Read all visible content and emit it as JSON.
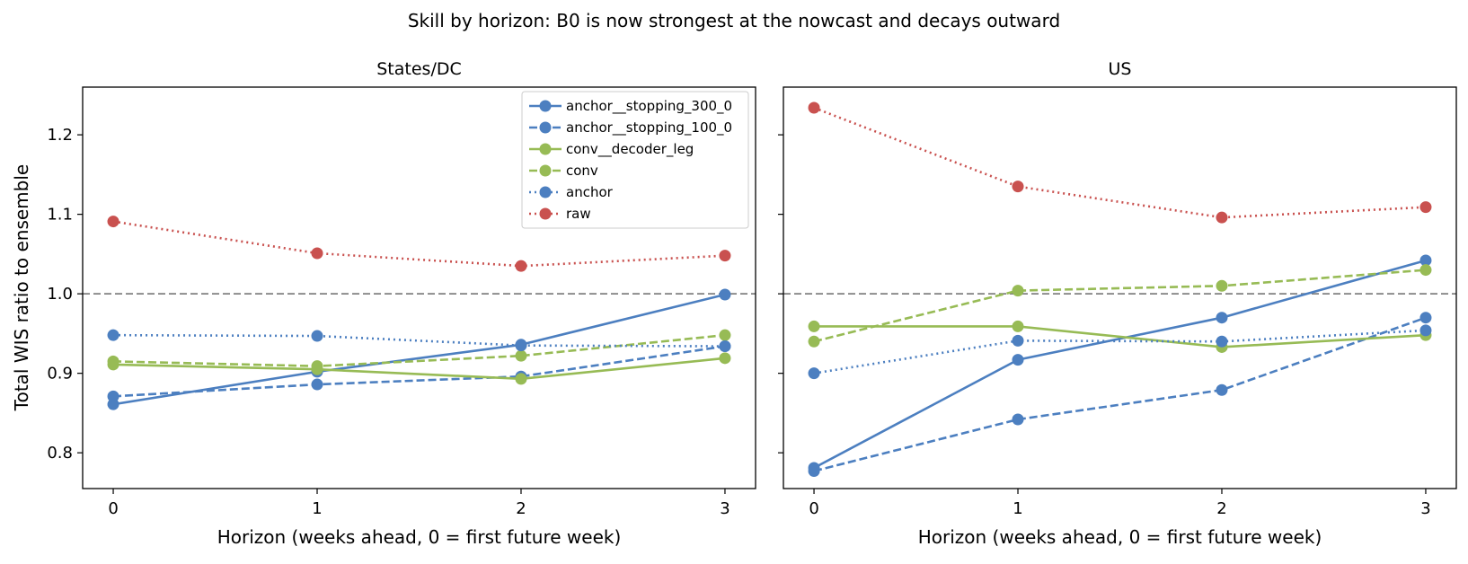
{
  "chart_data": {
    "type": "line",
    "suptitle": "Skill by horizon: B0 is now strongest at the nowcast and decays outward",
    "ylabel": "Total WIS ratio to ensemble",
    "xlabel": "Horizon (weeks ahead, 0 = first future week)",
    "x": [
      0,
      1,
      2,
      3
    ],
    "xticks": [
      "0",
      "1",
      "2",
      "3"
    ],
    "yticks": [
      "0.8",
      "0.9",
      "1.0",
      "1.1",
      "1.2"
    ],
    "ylim": [
      0.755,
      1.26
    ],
    "xlim": [
      -0.15,
      3.15
    ],
    "reference_line": {
      "y": 1.0,
      "style": "dashed",
      "color": "#808080"
    },
    "legend_position": "upper right of first panel",
    "series_styles": [
      {
        "name": "anchor__stopping_300_0",
        "color": "#4c7fc0",
        "dash": "solid"
      },
      {
        "name": "anchor__stopping_100_0",
        "color": "#4c7fc0",
        "dash": "dashed"
      },
      {
        "name": "conv__decoder_leg",
        "color": "#97bb55",
        "dash": "solid"
      },
      {
        "name": "conv",
        "color": "#97bb55",
        "dash": "dashed"
      },
      {
        "name": "anchor",
        "color": "#4c7fc0",
        "dash": "dotted"
      },
      {
        "name": "raw",
        "color": "#c9514f",
        "dash": "dotted"
      }
    ],
    "panels": [
      {
        "title": "States/DC",
        "series": [
          {
            "name": "anchor__stopping_300_0",
            "values": [
              0.861,
              0.902,
              0.936,
              0.999
            ]
          },
          {
            "name": "anchor__stopping_100_0",
            "values": [
              0.871,
              0.886,
              0.896,
              0.934
            ]
          },
          {
            "name": "conv__decoder_leg",
            "values": [
              0.911,
              0.905,
              0.893,
              0.919
            ]
          },
          {
            "name": "conv",
            "values": [
              0.915,
              0.909,
              0.922,
              0.948
            ]
          },
          {
            "name": "anchor",
            "values": [
              0.948,
              0.947,
              0.935,
              0.934
            ]
          },
          {
            "name": "raw",
            "values": [
              1.091,
              1.051,
              1.035,
              1.048
            ]
          }
        ]
      },
      {
        "title": "US",
        "series": [
          {
            "name": "anchor__stopping_300_0",
            "values": [
              0.781,
              0.917,
              0.97,
              1.042
            ]
          },
          {
            "name": "anchor__stopping_100_0",
            "values": [
              0.777,
              0.842,
              0.879,
              0.97
            ]
          },
          {
            "name": "conv__decoder_leg",
            "values": [
              0.959,
              0.959,
              0.933,
              0.948
            ]
          },
          {
            "name": "conv",
            "values": [
              0.94,
              1.004,
              1.01,
              1.03
            ]
          },
          {
            "name": "anchor",
            "values": [
              0.9,
              0.941,
              0.94,
              0.954
            ]
          },
          {
            "name": "raw",
            "values": [
              1.234,
              1.135,
              1.096,
              1.109
            ]
          }
        ]
      }
    ]
  }
}
